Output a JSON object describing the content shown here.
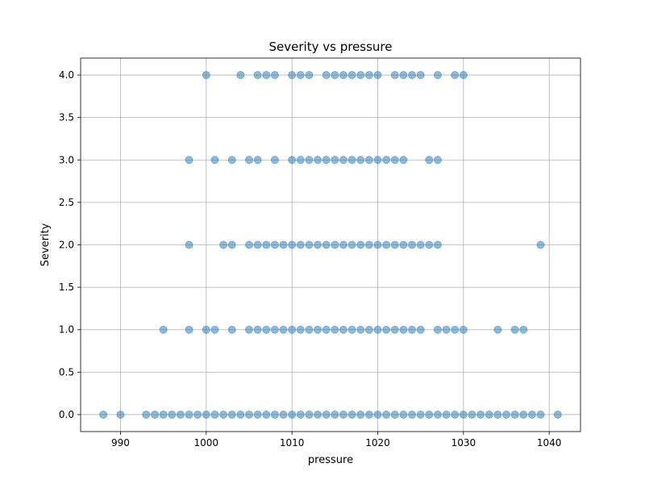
{
  "chart_data": {
    "type": "scatter",
    "title": "Severity vs pressure",
    "xlabel": "pressure",
    "ylabel": "Severity",
    "xlim": [
      985.35,
      1043.65
    ],
    "ylim": [
      -0.2,
      4.2
    ],
    "xticks": [
      990,
      1000,
      1010,
      1020,
      1030,
      1040
    ],
    "yticks": [
      0.0,
      0.5,
      1.0,
      1.5,
      2.0,
      2.5,
      3.0,
      3.5,
      4.0
    ],
    "xtick_labels": [
      "990",
      "1000",
      "1010",
      "1020",
      "1030",
      "1040"
    ],
    "ytick_labels": [
      "0.0",
      "0.5",
      "1.0",
      "1.5",
      "2.0",
      "2.5",
      "3.0",
      "3.5",
      "4.0"
    ],
    "grid": true,
    "marker_color": "#1f77b4",
    "marker_alpha": 0.5,
    "series": [
      {
        "x": [
          1000,
          1004,
          1006,
          1007,
          1008,
          1010,
          1011,
          1012,
          1014,
          1015,
          1016,
          1017,
          1018,
          1019,
          1020,
          1022,
          1023,
          1024,
          1025,
          1027,
          1029,
          1030,
          998,
          1001,
          1003,
          1005,
          1006,
          1008,
          1010,
          1011,
          1012,
          1013,
          1014,
          1015,
          1016,
          1017,
          1018,
          1019,
          1020,
          1021,
          1022,
          1023,
          1026,
          1027,
          998,
          1002,
          1003,
          1005,
          1006,
          1007,
          1008,
          1009,
          1010,
          1011,
          1012,
          1013,
          1014,
          1015,
          1016,
          1017,
          1018,
          1019,
          1020,
          1021,
          1022,
          1023,
          1024,
          1025,
          1026,
          1027,
          1039,
          995,
          998,
          1000,
          1001,
          1003,
          1005,
          1006,
          1007,
          1008,
          1009,
          1010,
          1011,
          1012,
          1013,
          1014,
          1015,
          1016,
          1017,
          1018,
          1019,
          1020,
          1021,
          1022,
          1023,
          1024,
          1025,
          1027,
          1028,
          1029,
          1030,
          1034,
          1036,
          1037,
          988,
          990,
          993,
          994,
          995,
          996,
          997,
          998,
          999,
          1000,
          1001,
          1002,
          1003,
          1004,
          1005,
          1006,
          1007,
          1008,
          1009,
          1010,
          1011,
          1012,
          1013,
          1014,
          1015,
          1016,
          1017,
          1018,
          1019,
          1020,
          1021,
          1022,
          1023,
          1024,
          1025,
          1026,
          1027,
          1028,
          1029,
          1030,
          1031,
          1032,
          1033,
          1034,
          1035,
          1036,
          1037,
          1038,
          1039,
          1041
        ],
        "y": [
          4,
          4,
          4,
          4,
          4,
          4,
          4,
          4,
          4,
          4,
          4,
          4,
          4,
          4,
          4,
          4,
          4,
          4,
          4,
          4,
          4,
          4,
          3,
          3,
          3,
          3,
          3,
          3,
          3,
          3,
          3,
          3,
          3,
          3,
          3,
          3,
          3,
          3,
          3,
          3,
          3,
          3,
          3,
          3,
          2,
          2,
          2,
          2,
          2,
          2,
          2,
          2,
          2,
          2,
          2,
          2,
          2,
          2,
          2,
          2,
          2,
          2,
          2,
          2,
          2,
          2,
          2,
          2,
          2,
          2,
          2,
          1,
          1,
          1,
          1,
          1,
          1,
          1,
          1,
          1,
          1,
          1,
          1,
          1,
          1,
          1,
          1,
          1,
          1,
          1,
          1,
          1,
          1,
          1,
          1,
          1,
          1,
          1,
          1,
          1,
          1,
          1,
          1,
          1,
          0,
          0,
          0,
          0,
          0,
          0,
          0,
          0,
          0,
          0,
          0,
          0,
          0,
          0,
          0,
          0,
          0,
          0,
          0,
          0,
          0,
          0,
          0,
          0,
          0,
          0,
          0,
          0,
          0,
          0,
          0,
          0,
          0,
          0,
          0,
          0,
          0,
          0,
          0,
          0,
          0,
          0,
          0,
          0,
          0,
          0,
          0,
          0,
          0,
          0
        ]
      }
    ]
  }
}
